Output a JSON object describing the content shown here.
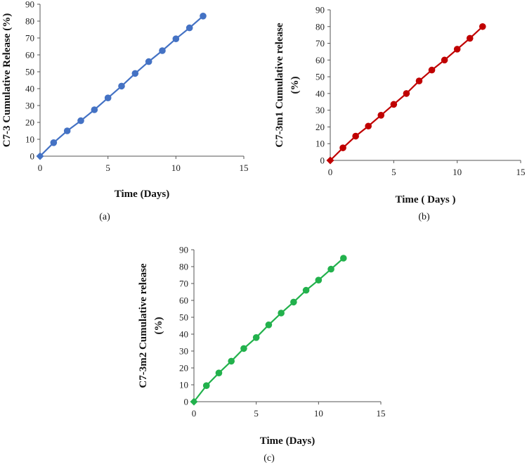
{
  "chart_data": [
    {
      "id": "a",
      "type": "line",
      "caption": "(a)",
      "xlabel": "Time (Days)",
      "ylabel": "C7-3 Cumulative Release (%)",
      "xlim": [
        0,
        15
      ],
      "ylim": [
        0,
        90
      ],
      "xticks": [
        "0",
        "5",
        "10",
        "15"
      ],
      "yticks": [
        "0",
        "10",
        "20",
        "30",
        "40",
        "50",
        "60",
        "70",
        "80",
        "90"
      ],
      "color": "#4472C4",
      "x": [
        0,
        1,
        2,
        3,
        4,
        5,
        6,
        7,
        8,
        9,
        10,
        11,
        12
      ],
      "y": [
        0,
        8,
        15,
        21,
        27.5,
        34.5,
        41.5,
        49,
        56,
        62.5,
        69.5,
        76,
        83
      ]
    },
    {
      "id": "b",
      "type": "line",
      "caption": "(b)",
      "xlabel": "Time ( Days )",
      "ylabel_lines": [
        "C7-3m1 Cumulative release",
        "(%)"
      ],
      "xlim": [
        0,
        15
      ],
      "ylim": [
        0,
        90
      ],
      "xticks": [
        "0",
        "5",
        "10",
        "15"
      ],
      "yticks": [
        "0",
        "10",
        "20",
        "30",
        "40",
        "50",
        "60",
        "70",
        "80",
        "90"
      ],
      "color": "#C00000",
      "x": [
        0,
        1,
        2,
        3,
        4,
        5,
        6,
        7,
        8,
        9,
        10,
        11,
        12
      ],
      "y": [
        0,
        7.5,
        14.5,
        20.5,
        27,
        33.5,
        40,
        47.5,
        54,
        60,
        66.5,
        73,
        80
      ]
    },
    {
      "id": "c",
      "type": "line",
      "caption": "(c)",
      "xlabel": "Time (Days)",
      "ylabel_lines": [
        "C7-3m2 Cumulative release",
        "(%)"
      ],
      "xlim": [
        0,
        15
      ],
      "ylim": [
        0,
        90
      ],
      "xticks": [
        "0",
        "5",
        "10",
        "15"
      ],
      "yticks": [
        "0",
        "10",
        "20",
        "30",
        "40",
        "50",
        "60",
        "70",
        "80",
        "90"
      ],
      "color": "#22B14C",
      "x": [
        0,
        1,
        2,
        3,
        4,
        5,
        6,
        7,
        8,
        9,
        10,
        11,
        12
      ],
      "y": [
        0,
        9.5,
        17,
        24,
        31.5,
        38,
        45.5,
        52.5,
        59,
        66,
        72,
        78.5,
        85
      ]
    }
  ]
}
